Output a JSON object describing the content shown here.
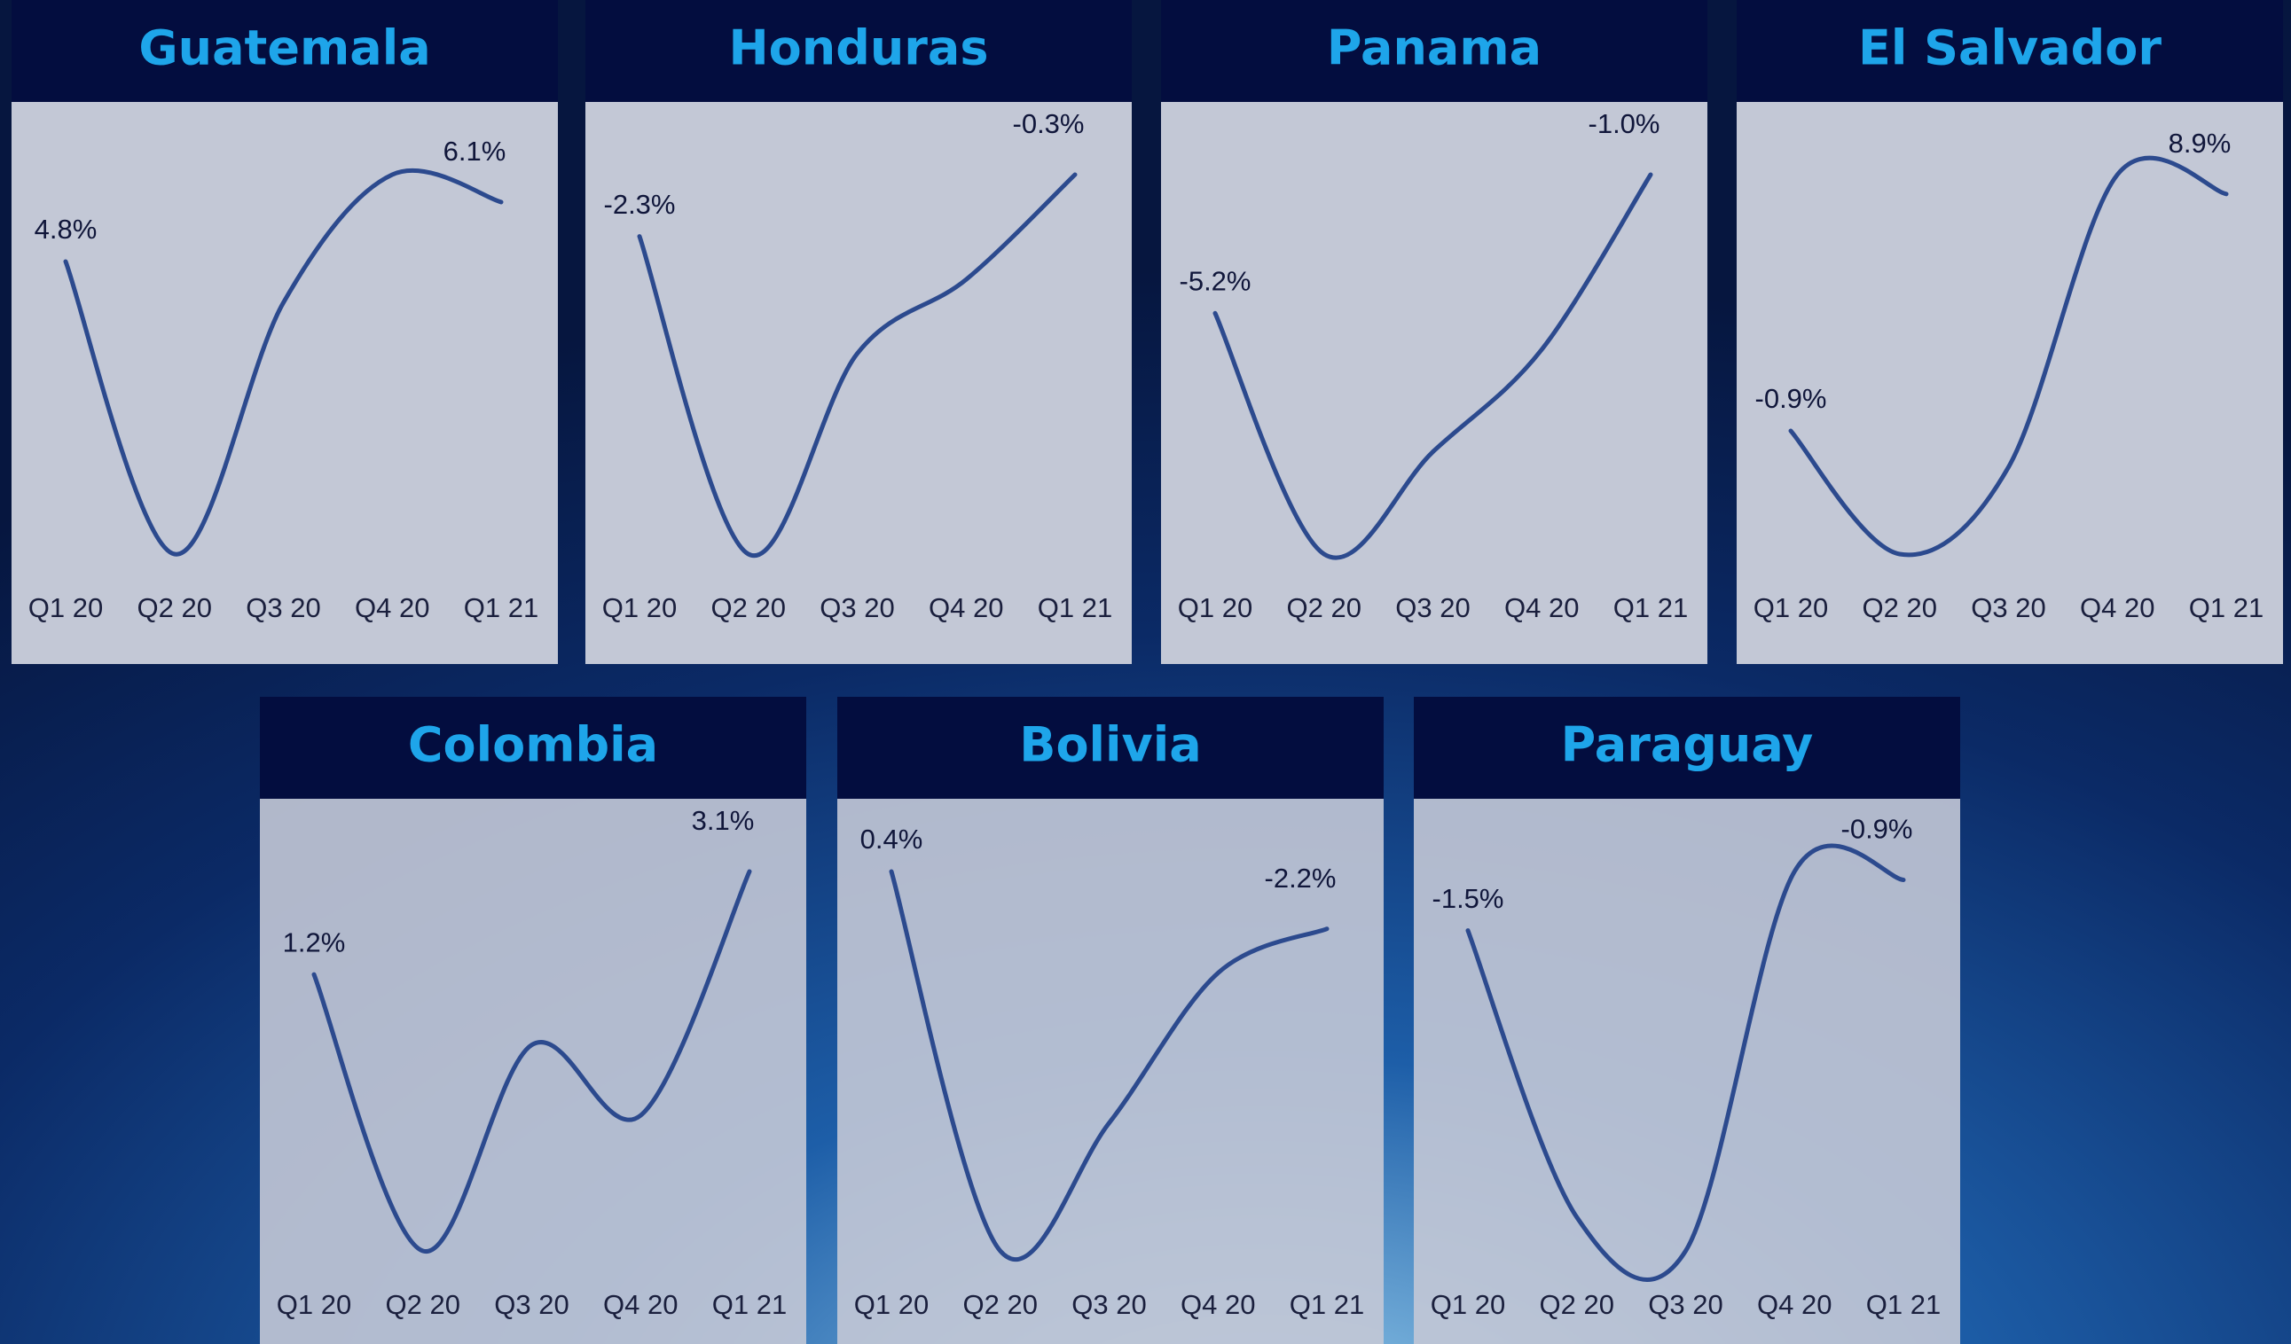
{
  "chart_data": [
    {
      "type": "line",
      "title": "Guatemala",
      "categories": [
        "Q1 20",
        "Q2 20",
        "Q3 20",
        "Q4 20",
        "Q1 21"
      ],
      "values": [
        4.8,
        -1.6,
        3.9,
        6.7,
        6.1
      ],
      "value_labels": [
        "4.8%",
        null,
        null,
        null,
        "6.1%"
      ],
      "color": "#2c4a8e"
    },
    {
      "type": "line",
      "title": "Honduras",
      "categories": [
        "Q1 20",
        "Q2 20",
        "Q3 20",
        "Q4 20",
        "Q1 21"
      ],
      "values": [
        -2.3,
        -12.6,
        -6.1,
        -3.7,
        -0.3
      ],
      "value_labels": [
        "-2.3%",
        null,
        null,
        null,
        "-0.3%"
      ],
      "color": "#2c4a8e"
    },
    {
      "type": "line",
      "title": "Panama",
      "categories": [
        "Q1 20",
        "Q2 20",
        "Q3 20",
        "Q4 20",
        "Q1 21"
      ],
      "values": [
        -5.2,
        -12.5,
        -9.4,
        -6.3,
        -1.0
      ],
      "value_labels": [
        "-5.2%",
        null,
        null,
        null,
        "-1.0%"
      ],
      "color": "#2c4a8e"
    },
    {
      "type": "line",
      "title": "El Salvador",
      "categories": [
        "Q1 20",
        "Q2 20",
        "Q3 20",
        "Q4 20",
        "Q1 21"
      ],
      "values": [
        -0.9,
        -6.0,
        -2.4,
        9.7,
        8.9
      ],
      "value_labels": [
        "-0.9%",
        null,
        null,
        null,
        "8.9%"
      ],
      "color": "#2c4a8e"
    },
    {
      "type": "line",
      "title": "Colombia",
      "categories": [
        "Q1 20",
        "Q2 20",
        "Q3 20",
        "Q4 20",
        "Q1 21"
      ],
      "values": [
        1.2,
        -3.9,
        -0.1,
        -1.4,
        3.1
      ],
      "value_labels": [
        "1.2%",
        null,
        null,
        null,
        "3.1%"
      ],
      "color": "#2c4a8e"
    },
    {
      "type": "line",
      "title": "Bolivia",
      "categories": [
        "Q1 20",
        "Q2 20",
        "Q3 20",
        "Q4 20",
        "Q1 21"
      ],
      "values": [
        0.4,
        -16.8,
        -11.0,
        -4.2,
        -2.2
      ],
      "value_labels": [
        "0.4%",
        null,
        null,
        null,
        "-2.2%"
      ],
      "color": "#2c4a8e"
    },
    {
      "type": "line",
      "title": "Paraguay",
      "categories": [
        "Q1 20",
        "Q2 20",
        "Q3 20",
        "Q4 20",
        "Q1 21"
      ],
      "values": [
        -1.5,
        -4.9,
        -5.3,
        -0.8,
        -0.9
      ],
      "value_labels": [
        "-1.5%",
        null,
        null,
        null,
        "-0.9%"
      ],
      "color": "#2c4a8e"
    }
  ]
}
